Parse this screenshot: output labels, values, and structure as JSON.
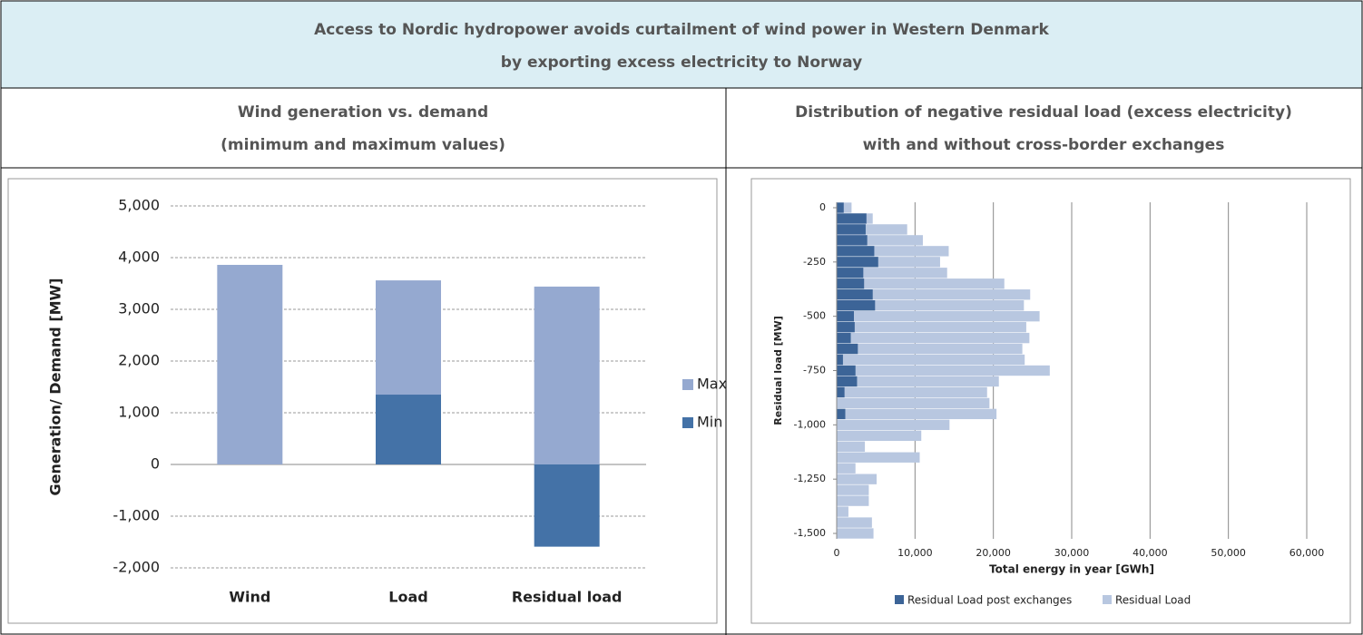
{
  "header": {
    "title": [
      "Access to Nordic hydropower avoids curtailment of wind power in Western Denmark",
      "by exporting excess electricity to Norway"
    ]
  },
  "columns": [
    {
      "title": [
        "Wind generation vs. demand",
        "(minimum and maximum values)"
      ]
    },
    {
      "title": [
        "Distribution of negative residual load (excess electricity)",
        "with and without cross-border exchanges"
      ]
    }
  ],
  "chart_data": [
    {
      "type": "bar",
      "categories": [
        "Wind",
        "Load",
        "Residual load"
      ],
      "y_label": "Generation/ Demand [MW]",
      "series": [
        {
          "name": "Max",
          "color": "#95a9d0",
          "values": [
            3860,
            3560,
            3440
          ]
        },
        {
          "name": "Min",
          "color": "#4472a7",
          "values": [
            0,
            1350,
            -1590
          ]
        }
      ],
      "ylim": [
        -2000,
        5000
      ],
      "yticks": [
        {
          "value": -2000,
          "label": "-2,000"
        },
        {
          "value": -1000,
          "label": "-1,000"
        },
        0,
        {
          "value": 1000,
          "label": "1,000"
        },
        {
          "value": 2000,
          "label": "2,000"
        },
        {
          "value": 3000,
          "label": "3,000"
        },
        {
          "value": 4000,
          "label": "4,000"
        },
        {
          "value": 5000,
          "label": "5,000"
        }
      ],
      "grid": true,
      "legend": "right"
    },
    {
      "type": "hbar",
      "x_label": "Total energy in year [GWh]",
      "y_label": "Residual load [MW]",
      "y": [
        0,
        -50,
        -100,
        -150,
        -200,
        -250,
        -300,
        -350,
        -400,
        -450,
        -500,
        -550,
        -600,
        -650,
        -700,
        -750,
        -800,
        -850,
        -900,
        -950,
        -1000,
        -1050,
        -1100,
        -1150,
        -1200,
        -1250,
        -1300,
        -1350,
        -1400,
        -1450,
        -1500
      ],
      "series": [
        {
          "name": "Residual Load",
          "color": "#b8c7e0",
          "values": [
            1900,
            4600,
            9000,
            11000,
            14300,
            13200,
            14100,
            21400,
            24700,
            23900,
            25900,
            24200,
            24600,
            23700,
            24000,
            27200,
            20700,
            19200,
            19500,
            20400,
            14400,
            10800,
            3600,
            10600,
            2400,
            5100,
            4100,
            4100,
            1500,
            4500,
            4700
          ]
        },
        {
          "name": "Residual Load post exchanges",
          "color": "#3c6497",
          "values": [
            900,
            3800,
            3700,
            3900,
            4800,
            5300,
            3400,
            3500,
            4600,
            4900,
            2200,
            2300,
            1800,
            2700,
            800,
            2400,
            2600,
            1000,
            0,
            1100,
            0,
            0,
            0,
            0,
            0,
            0,
            0,
            0,
            0,
            0,
            0
          ]
        }
      ],
      "xlim": [
        0,
        60000
      ],
      "xticks": [
        0,
        {
          "value": 10000,
          "label": "10,000"
        },
        {
          "value": 20000,
          "label": "20,000"
        },
        {
          "value": 30000,
          "label": "30,000"
        },
        {
          "value": 40000,
          "label": "40,000"
        },
        {
          "value": 50000,
          "label": "50,000"
        },
        {
          "value": 60000,
          "label": "60,000"
        }
      ],
      "ylim": [
        -1525,
        25
      ],
      "yticks": [
        0,
        -250,
        -500,
        -750,
        {
          "value": -1000,
          "label": "-1,000"
        },
        {
          "value": -1250,
          "label": "-1,250"
        },
        {
          "value": -1500,
          "label": "-1,500"
        }
      ],
      "grid": true,
      "legend": "bottom"
    }
  ]
}
